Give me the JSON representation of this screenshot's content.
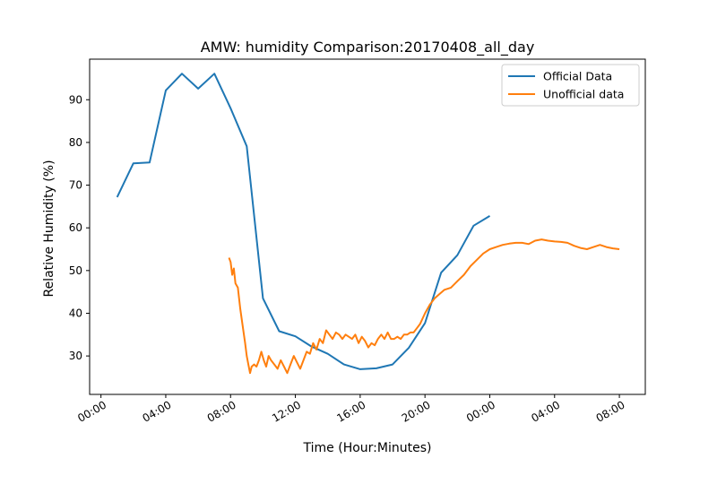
{
  "chart_data": {
    "type": "line",
    "title": "AMW: humidity Comparison:20170408_all_day",
    "xlabel": "Time (Hour:Minutes)",
    "ylabel": "Relative Humidity (%)",
    "x_unit": "hours since 00:00 on the first day shown",
    "xlim": [
      -0.7,
      33.6
    ],
    "ylim": [
      21,
      99.5
    ],
    "x_ticks": [
      0,
      4,
      8,
      12,
      16,
      20,
      24,
      28,
      32
    ],
    "x_tick_labels": [
      "00:00",
      "04:00",
      "08:00",
      "12:00",
      "16:00",
      "20:00",
      "00:00",
      "04:00",
      "08:00"
    ],
    "y_ticks": [
      30,
      40,
      50,
      60,
      70,
      80,
      90
    ],
    "y_tick_labels": [
      "30",
      "40",
      "50",
      "60",
      "70",
      "80",
      "90"
    ],
    "grid": false,
    "legend_position": "top-right",
    "series": [
      {
        "name": "Official Data",
        "color": "#1f77b4",
        "x": [
          1,
          2,
          3,
          4,
          5,
          6,
          7,
          8,
          9,
          10,
          11,
          12,
          13,
          14,
          15,
          16,
          17,
          18,
          19,
          20,
          21,
          22,
          23,
          24
        ],
        "y": [
          67.2,
          75.1,
          75.3,
          92.2,
          96.1,
          92.6,
          96.1,
          88.0,
          79.1,
          43.5,
          35.8,
          34.6,
          32.2,
          30.5,
          28.0,
          26.9,
          27.1,
          28.0,
          31.9,
          37.7,
          49.5,
          53.6,
          60.5,
          62.8
        ]
      },
      {
        "name": "Unofficial data",
        "color": "#ff7f0e",
        "x": [
          7.9,
          8.0,
          8.1,
          8.2,
          8.3,
          8.45,
          8.6,
          8.75,
          8.9,
          9.0,
          9.1,
          9.2,
          9.3,
          9.45,
          9.6,
          9.75,
          9.9,
          10.05,
          10.2,
          10.35,
          10.5,
          10.7,
          10.9,
          11.1,
          11.3,
          11.5,
          11.7,
          11.9,
          12.1,
          12.3,
          12.5,
          12.7,
          12.9,
          13.1,
          13.3,
          13.5,
          13.7,
          13.9,
          14.1,
          14.3,
          14.5,
          14.7,
          14.9,
          15.1,
          15.3,
          15.5,
          15.7,
          15.9,
          16.1,
          16.3,
          16.5,
          16.7,
          16.9,
          17.1,
          17.3,
          17.5,
          17.7,
          17.9,
          18.1,
          18.3,
          18.5,
          18.7,
          18.9,
          19.1,
          19.3,
          19.5,
          19.7,
          20.0,
          20.3,
          20.6,
          20.9,
          21.2,
          21.6,
          22.0,
          22.4,
          22.8,
          23.2,
          23.6,
          24.0,
          24.4,
          24.8,
          25.2,
          25.6,
          26.0,
          26.4,
          26.8,
          27.2,
          27.6,
          28.0,
          28.4,
          28.8,
          29.2,
          29.6,
          30.0,
          30.4,
          30.8,
          31.2,
          31.6,
          32.0
        ],
        "y": [
          53,
          52,
          49,
          50.5,
          47,
          46,
          41,
          37,
          33,
          30,
          28,
          26,
          27.5,
          28,
          27.5,
          29,
          31,
          29,
          27.5,
          30,
          29,
          28,
          27,
          29,
          27.5,
          26,
          28,
          30,
          28.5,
          27,
          29,
          31,
          30.5,
          33,
          31.5,
          34,
          33,
          36,
          35,
          34,
          35.5,
          35,
          34,
          35,
          34.5,
          34,
          35,
          33,
          34.5,
          33.5,
          32,
          33,
          32.5,
          34,
          35,
          34,
          35.5,
          34,
          34,
          34.5,
          34,
          35,
          35,
          35.5,
          35.5,
          36.5,
          37.5,
          40,
          42,
          43.5,
          44.5,
          45.5,
          46,
          47.5,
          49,
          51,
          52.5,
          54,
          55,
          55.5,
          56,
          56.3,
          56.5,
          56.5,
          56.2,
          57,
          57.3,
          57,
          56.8,
          56.7,
          56.5,
          55.8,
          55.3,
          55.0,
          55.5,
          56,
          55.5,
          55.2,
          55.0
        ]
      }
    ]
  }
}
